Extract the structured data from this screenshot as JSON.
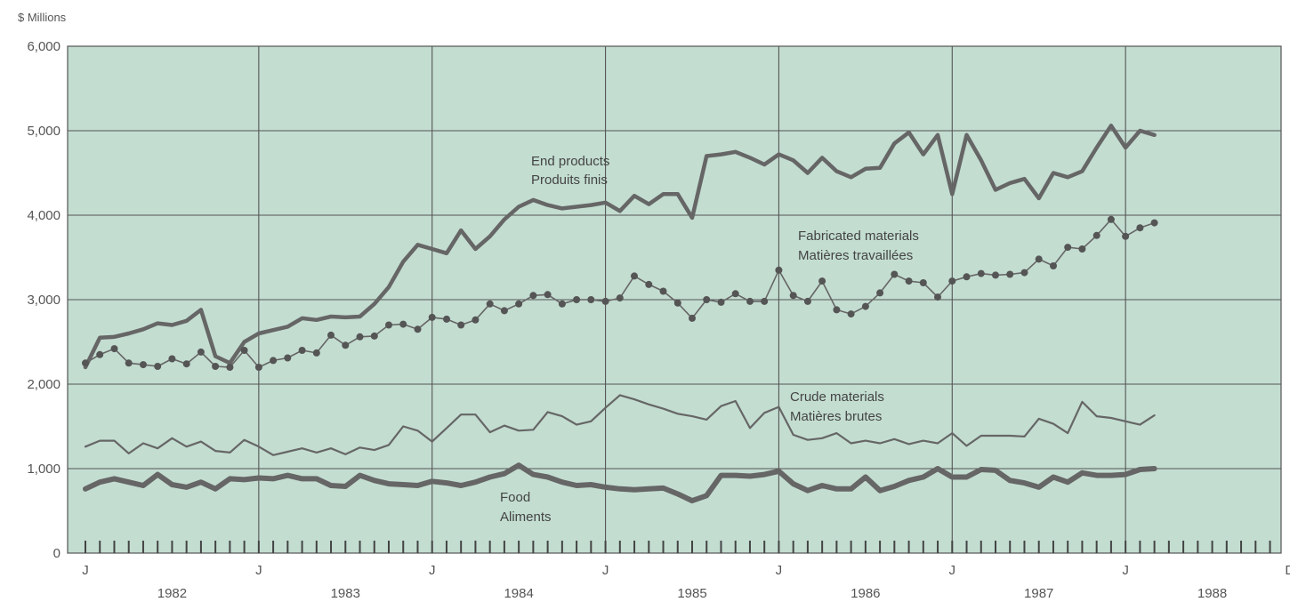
{
  "chart_data": {
    "type": "line",
    "title": "",
    "ylabel": "$ Millions",
    "ylim": [
      0,
      6000
    ],
    "yticks": [
      0,
      1000,
      2000,
      3000,
      4000,
      5000,
      6000
    ],
    "ytick_labels": [
      "0",
      "1,000",
      "2,000",
      "3,000",
      "4,000",
      "5,000",
      "6,000"
    ],
    "x_month_labels": [
      "J",
      "J",
      "J",
      "J",
      "J",
      "J",
      "J",
      "D"
    ],
    "year_labels": [
      "1982",
      "1983",
      "1984",
      "1985",
      "1986",
      "1987",
      "1988"
    ],
    "grid": true,
    "colors": {
      "plot_background": "#c3ddd1",
      "grid": "#555555",
      "series": "#666666",
      "end_products": "#555555",
      "food": "#555555"
    },
    "series": [
      {
        "name_en": "End products",
        "name_fr": "Produits finis",
        "style": "thick",
        "values": [
          2200,
          2550,
          2560,
          2600,
          2650,
          2720,
          2700,
          2750,
          2880,
          2330,
          2250,
          2500,
          2600,
          2640,
          2680,
          2780,
          2760,
          2800,
          2790,
          2800,
          2950,
          3150,
          3450,
          3650,
          3600,
          3550,
          3820,
          3600,
          3750,
          3950,
          4100,
          4180,
          4120,
          4080,
          4100,
          4120,
          4150,
          4050,
          4230,
          4130,
          4250,
          4250,
          3970,
          4700,
          4720,
          4750,
          4680,
          4600,
          4720,
          4650,
          4500,
          4680,
          4520,
          4450,
          4550,
          4560,
          4850,
          4980,
          4720,
          4950,
          4250,
          4950,
          4650,
          4300,
          4380,
          4430,
          4200,
          4500,
          4450,
          4520,
          4800,
          5060,
          4800,
          5000,
          4950
        ]
      },
      {
        "name_en": "Fabricated materials",
        "name_fr": "Matières travaillées",
        "style": "dotted",
        "values": [
          2250,
          2350,
          2420,
          2250,
          2230,
          2210,
          2300,
          2240,
          2380,
          2210,
          2200,
          2400,
          2200,
          2280,
          2310,
          2400,
          2370,
          2580,
          2460,
          2560,
          2570,
          2700,
          2710,
          2650,
          2790,
          2770,
          2700,
          2760,
          2950,
          2870,
          2950,
          3050,
          3060,
          2950,
          3000,
          3000,
          2980,
          3020,
          3280,
          3180,
          3100,
          2960,
          2780,
          3000,
          2970,
          3070,
          2980,
          2980,
          3350,
          3050,
          2980,
          3220,
          2880,
          2830,
          2920,
          3080,
          3300,
          3220,
          3200,
          3030,
          3220,
          3270,
          3310,
          3290,
          3300,
          3320,
          3480,
          3400,
          3620,
          3600,
          3760,
          3950,
          3750,
          3850,
          3910
        ]
      },
      {
        "name_en": "Crude materials",
        "name_fr": "Matières brutes",
        "style": "thin",
        "values": [
          1260,
          1330,
          1330,
          1180,
          1300,
          1240,
          1360,
          1260,
          1320,
          1210,
          1190,
          1340,
          1260,
          1160,
          1200,
          1240,
          1190,
          1240,
          1170,
          1250,
          1220,
          1280,
          1500,
          1450,
          1320,
          1480,
          1640,
          1640,
          1430,
          1510,
          1450,
          1460,
          1670,
          1620,
          1520,
          1560,
          1720,
          1870,
          1820,
          1760,
          1710,
          1650,
          1620,
          1580,
          1740,
          1800,
          1480,
          1660,
          1730,
          1400,
          1340,
          1360,
          1420,
          1300,
          1330,
          1300,
          1350,
          1290,
          1330,
          1300,
          1420,
          1270,
          1390,
          1390,
          1390,
          1380,
          1590,
          1530,
          1420,
          1790,
          1620,
          1600,
          1560,
          1520,
          1630
        ]
      },
      {
        "name_en": "Food",
        "name_fr": "Aliments",
        "style": "thickest",
        "values": [
          760,
          840,
          880,
          840,
          800,
          930,
          810,
          780,
          840,
          760,
          880,
          870,
          890,
          880,
          920,
          880,
          880,
          800,
          790,
          920,
          860,
          820,
          810,
          800,
          850,
          830,
          800,
          840,
          900,
          940,
          1040,
          930,
          900,
          840,
          800,
          810,
          780,
          760,
          750,
          760,
          770,
          700,
          620,
          680,
          920,
          920,
          910,
          930,
          970,
          820,
          740,
          800,
          760,
          760,
          900,
          740,
          790,
          860,
          900,
          1000,
          900,
          900,
          990,
          980,
          860,
          830,
          780,
          900,
          840,
          950,
          920,
          920,
          930,
          990,
          1000
        ]
      }
    ]
  }
}
